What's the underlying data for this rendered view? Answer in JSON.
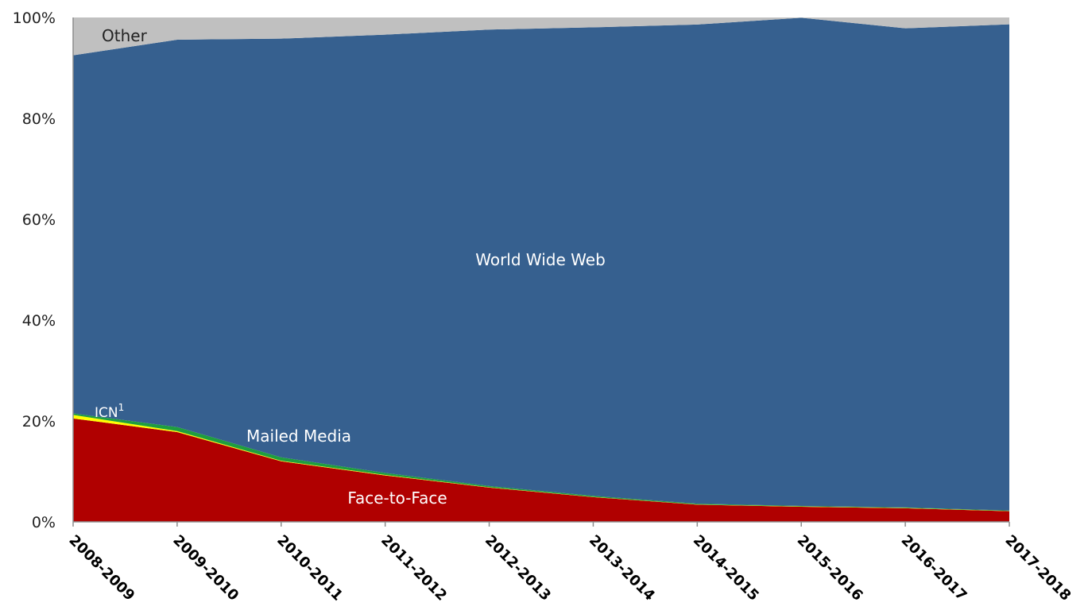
{
  "chart_data": {
    "type": "area",
    "stacked": true,
    "categories": [
      "2008-2009",
      "2009-2010",
      "2010-2011",
      "2011-2012",
      "2012-2013",
      "2013-2014",
      "2014-2015",
      "2015-2016",
      "2016-2017",
      "2017-2018"
    ],
    "y_tick_labels": [
      "0%",
      "20%",
      "40%",
      "60%",
      "80%",
      "100%"
    ],
    "ylim": [
      0,
      100
    ],
    "series": [
      {
        "name": "Face-to-Face",
        "color": "#b00000",
        "values": [
          20.5,
          17.8,
          12.0,
          9.2,
          6.8,
          4.9,
          3.4,
          3.0,
          2.7,
          2.1
        ]
      },
      {
        "name": "ICN",
        "color": "#ffff00",
        "values": [
          0.7,
          0.2,
          0.1,
          0.1,
          0.05,
          0.05,
          0.05,
          0.05,
          0.05,
          0.05
        ]
      },
      {
        "name": "Mailed Media",
        "color": "#1e9e3e",
        "values": [
          0.3,
          0.8,
          0.7,
          0.4,
          0.25,
          0.2,
          0.15,
          0.1,
          0.1,
          0.1
        ]
      },
      {
        "name": "World Wide Web",
        "color": "#36608f",
        "values": [
          71.0,
          76.8,
          83.0,
          86.9,
          90.5,
          92.9,
          95.0,
          96.8,
          95.0,
          96.4
        ]
      },
      {
        "name": "Other",
        "color": "#c0c0c0",
        "values": [
          7.5,
          4.4,
          4.2,
          3.4,
          2.4,
          2.0,
          1.4,
          0.05,
          2.15,
          1.35
        ]
      }
    ],
    "series_labels": {
      "face_to_face": "Face-to-Face",
      "icn": "ICN",
      "icn_superscript": "1",
      "mailed_media": "Mailed Media",
      "world_wide_web": "World Wide Web",
      "other": "Other"
    },
    "legend": "inline labels"
  }
}
